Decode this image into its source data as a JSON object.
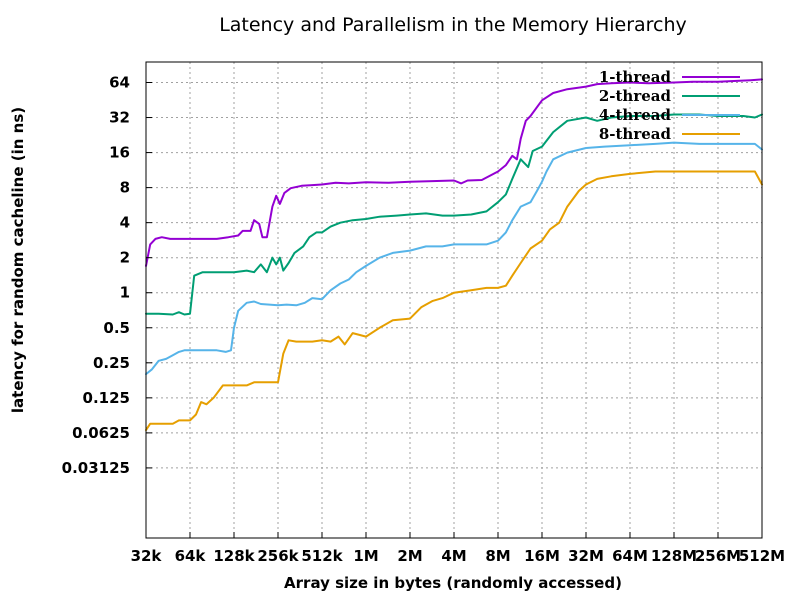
{
  "chart_data": {
    "type": "line",
    "title": "Latency and Parallelism in the Memory Hierarchy",
    "xlabel": "Array size in bytes (randomly accessed)",
    "ylabel": "latency for random cacheline (in ns)",
    "x_scale": "log2",
    "y_scale": "log2",
    "xlim": [
      32768,
      536870912
    ],
    "ylim": [
      0.0078125,
      96
    ],
    "xticks": [
      {
        "value": 32768,
        "label": "32k"
      },
      {
        "value": 65536,
        "label": "64k"
      },
      {
        "value": 131072,
        "label": "128k"
      },
      {
        "value": 262144,
        "label": "256k"
      },
      {
        "value": 524288,
        "label": "512k"
      },
      {
        "value": 1048576,
        "label": "1M"
      },
      {
        "value": 2097152,
        "label": "2M"
      },
      {
        "value": 4194304,
        "label": "4M"
      },
      {
        "value": 8388608,
        "label": "8M"
      },
      {
        "value": 16777216,
        "label": "16M"
      },
      {
        "value": 33554432,
        "label": "32M"
      },
      {
        "value": 67108864,
        "label": "64M"
      },
      {
        "value": 134217728,
        "label": "128M"
      },
      {
        "value": 268435456,
        "label": "256M"
      },
      {
        "value": 536870912,
        "label": "512M"
      }
    ],
    "yticks": [
      {
        "value": 0.03125,
        "label": "0.03125"
      },
      {
        "value": 0.0625,
        "label": "0.0625"
      },
      {
        "value": 0.125,
        "label": "0.125"
      },
      {
        "value": 0.25,
        "label": "0.25"
      },
      {
        "value": 0.5,
        "label": "0.5"
      },
      {
        "value": 1,
        "label": "1"
      },
      {
        "value": 2,
        "label": "2"
      },
      {
        "value": 4,
        "label": "4"
      },
      {
        "value": 8,
        "label": "8"
      },
      {
        "value": 16,
        "label": "16"
      },
      {
        "value": 32,
        "label": "32"
      },
      {
        "value": 64,
        "label": "64"
      }
    ],
    "grid": true,
    "legend_position": "top-right",
    "series": [
      {
        "name": "1-thread",
        "color": "#9400d3",
        "points": [
          [
            32768,
            1.7
          ],
          [
            35000,
            2.6
          ],
          [
            38000,
            2.9
          ],
          [
            42000,
            3.0
          ],
          [
            48000,
            2.9
          ],
          [
            56000,
            2.9
          ],
          [
            65536,
            2.9
          ],
          [
            80000,
            2.9
          ],
          [
            100000,
            2.9
          ],
          [
            120000,
            3.0
          ],
          [
            140000,
            3.1
          ],
          [
            150000,
            3.4
          ],
          [
            170000,
            3.4
          ],
          [
            180000,
            4.2
          ],
          [
            195000,
            3.9
          ],
          [
            205000,
            3.0
          ],
          [
            220000,
            3.0
          ],
          [
            240000,
            5.5
          ],
          [
            255000,
            6.8
          ],
          [
            270000,
            5.8
          ],
          [
            290000,
            7.2
          ],
          [
            320000,
            7.9
          ],
          [
            380000,
            8.3
          ],
          [
            450000,
            8.4
          ],
          [
            524288,
            8.5
          ],
          [
            650000,
            8.8
          ],
          [
            800000,
            8.7
          ],
          [
            1048576,
            8.9
          ],
          [
            1500000,
            8.8
          ],
          [
            2097152,
            9.0
          ],
          [
            3000000,
            9.1
          ],
          [
            4194304,
            9.2
          ],
          [
            4700000,
            8.7
          ],
          [
            5200000,
            9.2
          ],
          [
            6500000,
            9.3
          ],
          [
            8388608,
            11.0
          ],
          [
            9500000,
            12.5
          ],
          [
            10500000,
            15.0
          ],
          [
            11300000,
            14.0
          ],
          [
            12000000,
            21.0
          ],
          [
            13000000,
            30.0
          ],
          [
            14000000,
            33.0
          ],
          [
            16777216,
            45.0
          ],
          [
            20000000,
            52.0
          ],
          [
            25000000,
            56.0
          ],
          [
            33554432,
            59.0
          ],
          [
            40000000,
            62.0
          ],
          [
            50000000,
            63.0
          ],
          [
            67108864,
            64.0
          ],
          [
            90000000,
            63.0
          ],
          [
            134217728,
            64.0
          ],
          [
            180000000,
            65.0
          ],
          [
            268435456,
            65.0
          ],
          [
            360000000,
            66.0
          ],
          [
            450000000,
            67.0
          ],
          [
            536870912,
            68.0
          ]
        ]
      },
      {
        "name": "2-thread",
        "color": "#009e73",
        "points": [
          [
            32768,
            0.66
          ],
          [
            40000,
            0.66
          ],
          [
            50000,
            0.65
          ],
          [
            55000,
            0.68
          ],
          [
            60000,
            0.65
          ],
          [
            65536,
            0.66
          ],
          [
            70000,
            1.4
          ],
          [
            80000,
            1.5
          ],
          [
            100000,
            1.5
          ],
          [
            131072,
            1.5
          ],
          [
            160000,
            1.55
          ],
          [
            180000,
            1.5
          ],
          [
            200000,
            1.75
          ],
          [
            220000,
            1.5
          ],
          [
            240000,
            2.0
          ],
          [
            255000,
            1.75
          ],
          [
            270000,
            2.0
          ],
          [
            285000,
            1.55
          ],
          [
            310000,
            1.8
          ],
          [
            340000,
            2.2
          ],
          [
            390000,
            2.5
          ],
          [
            430000,
            3.0
          ],
          [
            480000,
            3.3
          ],
          [
            524288,
            3.3
          ],
          [
            600000,
            3.7
          ],
          [
            700000,
            4.0
          ],
          [
            850000,
            4.2
          ],
          [
            1048576,
            4.3
          ],
          [
            1300000,
            4.5
          ],
          [
            1700000,
            4.6
          ],
          [
            2097152,
            4.7
          ],
          [
            2700000,
            4.8
          ],
          [
            3500000,
            4.6
          ],
          [
            4194304,
            4.6
          ],
          [
            5500000,
            4.7
          ],
          [
            7000000,
            5.0
          ],
          [
            8388608,
            6.0
          ],
          [
            9500000,
            7.0
          ],
          [
            10500000,
            9.5
          ],
          [
            12000000,
            14.0
          ],
          [
            13500000,
            12.0
          ],
          [
            14500000,
            16.5
          ],
          [
            16777216,
            18.0
          ],
          [
            20000000,
            24.0
          ],
          [
            25000000,
            30.0
          ],
          [
            33554432,
            32.0
          ],
          [
            40000000,
            30.0
          ],
          [
            50000000,
            32.0
          ],
          [
            67108864,
            33.0
          ],
          [
            100000000,
            33.0
          ],
          [
            134217728,
            34.0
          ],
          [
            200000000,
            34.0
          ],
          [
            268435456,
            33.0
          ],
          [
            400000000,
            33.0
          ],
          [
            480000000,
            32.0
          ],
          [
            536870912,
            34.0
          ]
        ]
      },
      {
        "name": "4-thread",
        "color": "#56b4e9",
        "points": [
          [
            32768,
            0.2
          ],
          [
            36000,
            0.22
          ],
          [
            40000,
            0.26
          ],
          [
            45000,
            0.27
          ],
          [
            50000,
            0.29
          ],
          [
            55000,
            0.31
          ],
          [
            60000,
            0.32
          ],
          [
            65536,
            0.32
          ],
          [
            80000,
            0.32
          ],
          [
            100000,
            0.32
          ],
          [
            115000,
            0.31
          ],
          [
            125000,
            0.32
          ],
          [
            131072,
            0.5
          ],
          [
            140000,
            0.7
          ],
          [
            160000,
            0.82
          ],
          [
            180000,
            0.84
          ],
          [
            200000,
            0.8
          ],
          [
            262144,
            0.78
          ],
          [
            300000,
            0.79
          ],
          [
            350000,
            0.78
          ],
          [
            400000,
            0.82
          ],
          [
            450000,
            0.9
          ],
          [
            524288,
            0.88
          ],
          [
            600000,
            1.05
          ],
          [
            700000,
            1.2
          ],
          [
            800000,
            1.3
          ],
          [
            900000,
            1.5
          ],
          [
            1048576,
            1.7
          ],
          [
            1300000,
            2.0
          ],
          [
            1600000,
            2.2
          ],
          [
            2097152,
            2.3
          ],
          [
            2700000,
            2.5
          ],
          [
            3500000,
            2.5
          ],
          [
            4194304,
            2.6
          ],
          [
            5500000,
            2.6
          ],
          [
            7000000,
            2.6
          ],
          [
            8388608,
            2.8
          ],
          [
            9500000,
            3.3
          ],
          [
            10500000,
            4.2
          ],
          [
            12000000,
            5.5
          ],
          [
            14000000,
            6.0
          ],
          [
            15500000,
            7.5
          ],
          [
            16777216,
            9.0
          ],
          [
            18000000,
            11.0
          ],
          [
            20000000,
            14.0
          ],
          [
            25000000,
            16.0
          ],
          [
            33554432,
            17.5
          ],
          [
            45000000,
            18.0
          ],
          [
            67108864,
            18.5
          ],
          [
            100000000,
            19.0
          ],
          [
            134217728,
            19.5
          ],
          [
            200000000,
            19.0
          ],
          [
            268435456,
            19.0
          ],
          [
            400000000,
            19.0
          ],
          [
            480000000,
            19.0
          ],
          [
            536870912,
            17.0
          ]
        ]
      },
      {
        "name": "8-thread",
        "color": "#e69f00",
        "points": [
          [
            32768,
            0.066
          ],
          [
            35000,
            0.075
          ],
          [
            45000,
            0.075
          ],
          [
            50000,
            0.075
          ],
          [
            55000,
            0.08
          ],
          [
            65536,
            0.08
          ],
          [
            72000,
            0.09
          ],
          [
            78000,
            0.115
          ],
          [
            85000,
            0.11
          ],
          [
            95000,
            0.125
          ],
          [
            110000,
            0.16
          ],
          [
            131072,
            0.16
          ],
          [
            160000,
            0.16
          ],
          [
            180000,
            0.17
          ],
          [
            262144,
            0.17
          ],
          [
            285000,
            0.3
          ],
          [
            310000,
            0.39
          ],
          [
            350000,
            0.38
          ],
          [
            450000,
            0.38
          ],
          [
            524288,
            0.39
          ],
          [
            600000,
            0.38
          ],
          [
            680000,
            0.42
          ],
          [
            750000,
            0.36
          ],
          [
            850000,
            0.45
          ],
          [
            1048576,
            0.42
          ],
          [
            1300000,
            0.5
          ],
          [
            1600000,
            0.58
          ],
          [
            2097152,
            0.6
          ],
          [
            2500000,
            0.75
          ],
          [
            3000000,
            0.85
          ],
          [
            3500000,
            0.9
          ],
          [
            4194304,
            1.0
          ],
          [
            5500000,
            1.05
          ],
          [
            7000000,
            1.1
          ],
          [
            8388608,
            1.1
          ],
          [
            9500000,
            1.15
          ],
          [
            10500000,
            1.4
          ],
          [
            12000000,
            1.8
          ],
          [
            14000000,
            2.4
          ],
          [
            16777216,
            2.8
          ],
          [
            19000000,
            3.5
          ],
          [
            22000000,
            4.0
          ],
          [
            25000000,
            5.5
          ],
          [
            30000000,
            7.5
          ],
          [
            33554432,
            8.5
          ],
          [
            40000000,
            9.5
          ],
          [
            50000000,
            10.0
          ],
          [
            67108864,
            10.5
          ],
          [
            100000000,
            11.0
          ],
          [
            134217728,
            11.0
          ],
          [
            200000000,
            11.0
          ],
          [
            268435456,
            11.0
          ],
          [
            400000000,
            11.0
          ],
          [
            480000000,
            11.0
          ],
          [
            536870912,
            8.5
          ]
        ]
      }
    ]
  }
}
